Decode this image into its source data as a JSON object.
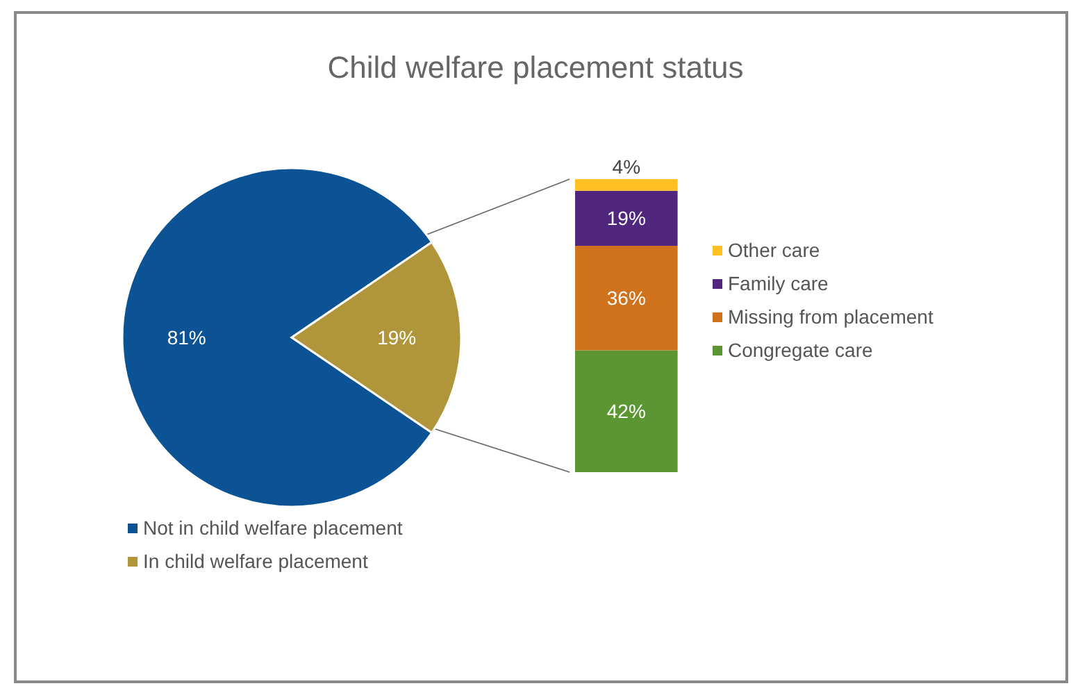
{
  "chart_data": [
    {
      "type": "pie",
      "title": "Child welfare placement status",
      "categories": [
        "Not in child welfare placement",
        "In child welfare placement"
      ],
      "values": [
        81,
        19
      ],
      "colors": [
        "#0b5394",
        "#b0953a"
      ],
      "value_labels": [
        "81%",
        "19%"
      ],
      "legend": "bottom"
    },
    {
      "type": "bar",
      "stacked": true,
      "categories": [
        null
      ],
      "tick_labels": false,
      "legend": "right",
      "series": [
        {
          "name": "Congregate care",
          "color": "#5b9632",
          "values": [
            42
          ],
          "value_labels": [
            "42%"
          ]
        },
        {
          "name": "Missing from placement",
          "color": "#d0711c",
          "values": [
            36
          ],
          "value_labels": [
            "36%"
          ]
        },
        {
          "name": "Family care",
          "color": "#51267f",
          "values": [
            19
          ],
          "value_labels": [
            "19%"
          ]
        },
        {
          "name": "Other care",
          "color": "#fec023",
          "values": [
            4
          ],
          "value_labels": [
            "4%"
          ]
        }
      ]
    }
  ]
}
